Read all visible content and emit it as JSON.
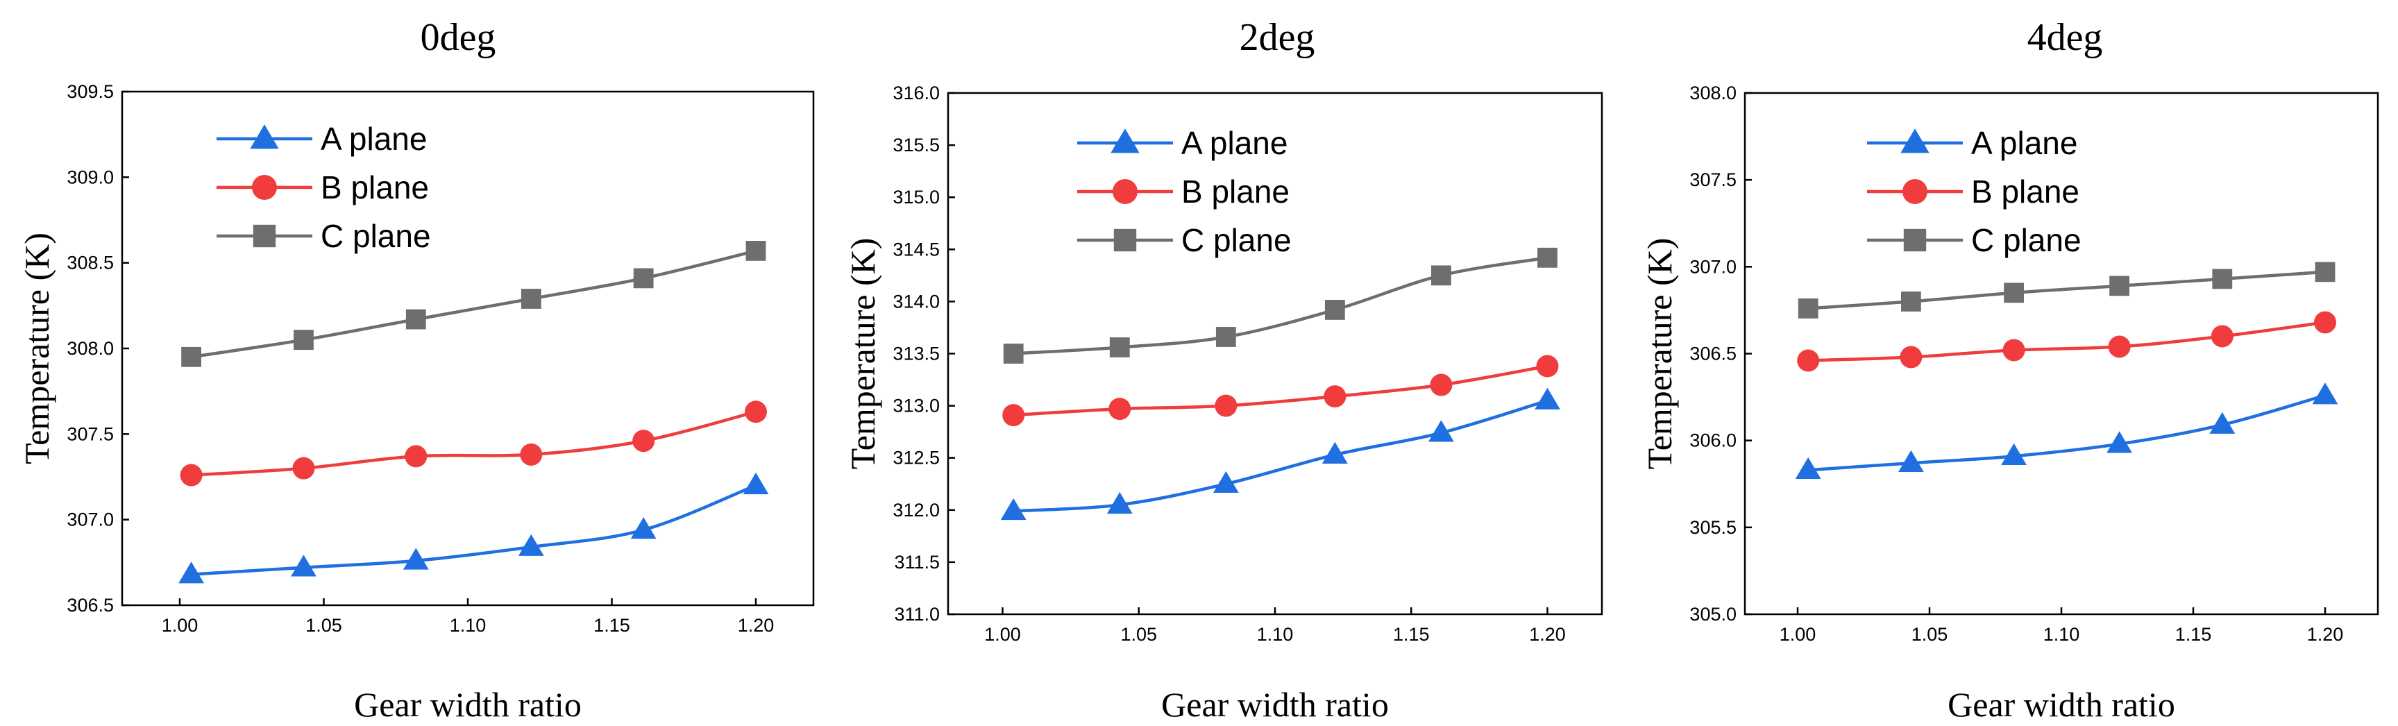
{
  "chart_data": [
    {
      "type": "line",
      "title": "0deg",
      "xlabel": "Gear width ratio",
      "ylabel": "Temperature (K)",
      "xlim": [
        0.98,
        1.22
      ],
      "ylim": [
        306.5,
        309.5
      ],
      "xticks": [
        "1.00",
        "1.05",
        "1.10",
        "1.15",
        "1.20"
      ],
      "yticks": [
        "306.5",
        "307.0",
        "307.5",
        "308.0",
        "308.5",
        "309.0",
        "309.5"
      ],
      "x": [
        1.004,
        1.043,
        1.082,
        1.122,
        1.161,
        1.2
      ],
      "legend_position": "top-left",
      "series": [
        {
          "name": "A plane",
          "color": "#1f6fe0",
          "marker": "triangle",
          "values": [
            306.68,
            306.72,
            306.76,
            306.84,
            306.94,
            307.2
          ]
        },
        {
          "name": "B plane",
          "color": "#f03c3c",
          "marker": "circle",
          "values": [
            307.26,
            307.3,
            307.37,
            307.38,
            307.46,
            307.63
          ]
        },
        {
          "name": "C plane",
          "color": "#6e6e6e",
          "marker": "square",
          "values": [
            307.95,
            308.05,
            308.17,
            308.29,
            308.41,
            308.57
          ]
        }
      ]
    },
    {
      "type": "line",
      "title": "2deg",
      "xlabel": "Gear width ratio",
      "ylabel": "Temperature (K)",
      "xlim": [
        0.98,
        1.22
      ],
      "ylim": [
        311.0,
        316.0
      ],
      "xticks": [
        "1.00",
        "1.05",
        "1.10",
        "1.15",
        "1.20"
      ],
      "yticks": [
        "311.0",
        "311.5",
        "312.0",
        "312.5",
        "313.0",
        "313.5",
        "314.0",
        "314.5",
        "315.0",
        "315.5",
        "316.0"
      ],
      "x": [
        1.004,
        1.043,
        1.082,
        1.122,
        1.161,
        1.2
      ],
      "legend_position": "top-left",
      "series": [
        {
          "name": "A plane",
          "color": "#1f6fe0",
          "marker": "triangle",
          "values": [
            311.99,
            312.05,
            312.25,
            312.53,
            312.74,
            313.05
          ]
        },
        {
          "name": "B plane",
          "color": "#f03c3c",
          "marker": "circle",
          "values": [
            312.91,
            312.97,
            313.0,
            313.09,
            313.2,
            313.38
          ]
        },
        {
          "name": "C plane",
          "color": "#6e6e6e",
          "marker": "square",
          "values": [
            313.5,
            313.56,
            313.66,
            313.92,
            314.25,
            314.42
          ]
        }
      ]
    },
    {
      "type": "line",
      "title": "4deg",
      "xlabel": "Gear width ratio",
      "ylabel": "Temperature (K)",
      "xlim": [
        0.98,
        1.22
      ],
      "ylim": [
        305.0,
        308.0
      ],
      "xticks": [
        "1.00",
        "1.05",
        "1.10",
        "1.15",
        "1.20"
      ],
      "yticks": [
        "305.0",
        "305.5",
        "306.0",
        "306.5",
        "307.0",
        "307.5",
        "308.0"
      ],
      "x": [
        1.004,
        1.043,
        1.082,
        1.122,
        1.161,
        1.2
      ],
      "legend_position": "top-left",
      "series": [
        {
          "name": "A plane",
          "color": "#1f6fe0",
          "marker": "triangle",
          "values": [
            305.83,
            305.87,
            305.91,
            305.98,
            306.09,
            306.26
          ]
        },
        {
          "name": "B plane",
          "color": "#f03c3c",
          "marker": "circle",
          "values": [
            306.46,
            306.48,
            306.52,
            306.54,
            306.6,
            306.68
          ]
        },
        {
          "name": "C plane",
          "color": "#6e6e6e",
          "marker": "square",
          "values": [
            306.76,
            306.8,
            306.85,
            306.89,
            306.93,
            306.97
          ]
        }
      ]
    }
  ]
}
